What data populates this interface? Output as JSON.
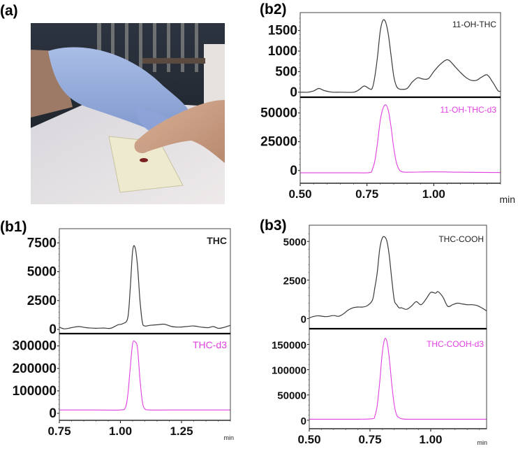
{
  "figure": {
    "panels": [
      "(a)",
      "(b1)",
      "(b2)",
      "(b3)"
    ]
  },
  "photo": {
    "label": "(a)",
    "description": "Gloved hand pressing a fingertip onto a white sampling card with blood spots"
  },
  "colors": {
    "analyte_trace": "#3a3a3a",
    "internal_standard_trace": "#e040e0",
    "axis": "#000000"
  },
  "chart_data": [
    {
      "id": "b1",
      "label": "(b1)",
      "type": "line",
      "xlabel": "min",
      "xlim": [
        0.75,
        1.45
      ],
      "xticks": [
        0.75,
        1.0,
        1.25
      ],
      "xtick_labels": [
        "0.75",
        "1.00",
        "1.25"
      ],
      "series": [
        {
          "name": "THC",
          "color": "#3a3a3a",
          "ylim": [
            0,
            8000
          ],
          "yticks": [
            0,
            2500,
            5000,
            7500
          ],
          "x": [
            0.75,
            0.77,
            0.8,
            0.83,
            0.86,
            0.9,
            0.93,
            0.96,
            0.99,
            1.01,
            1.03,
            1.04,
            1.05,
            1.06,
            1.07,
            1.08,
            1.09,
            1.1,
            1.12,
            1.15,
            1.18,
            1.21,
            1.24,
            1.27,
            1.3,
            1.33,
            1.36,
            1.38,
            1.4,
            1.42,
            1.45
          ],
          "y": [
            200,
            50,
            150,
            250,
            150,
            100,
            120,
            100,
            400,
            500,
            1000,
            3500,
            6800,
            7100,
            5500,
            2500,
            600,
            300,
            350,
            400,
            450,
            250,
            200,
            250,
            300,
            200,
            150,
            250,
            100,
            150,
            350
          ]
        },
        {
          "name": "THC-d3",
          "color": "#e040e0",
          "ylim": [
            0,
            330000
          ],
          "yticks": [
            0,
            100000,
            200000,
            300000
          ],
          "x": [
            0.75,
            0.9,
            1.0,
            1.02,
            1.03,
            1.04,
            1.05,
            1.06,
            1.07,
            1.08,
            1.09,
            1.1,
            1.12,
            1.2,
            1.45
          ],
          "y": [
            15000,
            15000,
            15000,
            25000,
            80000,
            200000,
            310000,
            318000,
            290000,
            150000,
            50000,
            20000,
            15000,
            15000,
            15000
          ]
        }
      ]
    },
    {
      "id": "b2",
      "label": "(b2)",
      "type": "line",
      "xlabel": "min",
      "xlim": [
        0.5,
        1.25
      ],
      "xticks": [
        0.5,
        0.75,
        1.0
      ],
      "xtick_labels": [
        "0.50",
        "0.75",
        "1.00"
      ],
      "series": [
        {
          "name": "11-OH-THC",
          "color": "#3a3a3a",
          "ylim": [
            -20,
            1800
          ],
          "yticks": [
            0,
            500,
            1000,
            1500
          ],
          "x": [
            0.5,
            0.53,
            0.55,
            0.57,
            0.59,
            0.62,
            0.65,
            0.7,
            0.72,
            0.74,
            0.76,
            0.77,
            0.78,
            0.79,
            0.8,
            0.81,
            0.82,
            0.83,
            0.84,
            0.85,
            0.86,
            0.87,
            0.88,
            0.9,
            0.92,
            0.94,
            0.96,
            0.98,
            1.0,
            1.02,
            1.04,
            1.05,
            1.06,
            1.08,
            1.1,
            1.12,
            1.14,
            1.16,
            1.18,
            1.2,
            1.22,
            1.24,
            1.25
          ],
          "y": [
            0,
            0,
            30,
            90,
            40,
            0,
            0,
            0,
            60,
            150,
            80,
            100,
            400,
            900,
            1500,
            1750,
            1700,
            1400,
            900,
            400,
            150,
            80,
            70,
            90,
            250,
            350,
            320,
            330,
            500,
            650,
            760,
            790,
            760,
            620,
            480,
            360,
            290,
            290,
            370,
            420,
            250,
            40,
            20
          ]
        },
        {
          "name": "11-OH-THC-d3",
          "color": "#e040e0",
          "ylim": [
            -5000,
            60000
          ],
          "yticks": [
            0,
            25000,
            50000
          ],
          "x": [
            0.5,
            0.7,
            0.76,
            0.77,
            0.78,
            0.79,
            0.8,
            0.81,
            0.82,
            0.83,
            0.84,
            0.85,
            0.86,
            0.87,
            0.88,
            0.9,
            1.0,
            1.1,
            1.25
          ],
          "y": [
            -2000,
            -2000,
            -1800,
            1000,
            9000,
            25000,
            44000,
            54000,
            57000,
            52000,
            38000,
            20000,
            7000,
            1000,
            -1000,
            -1500,
            -1200,
            -1500,
            -1800
          ]
        }
      ]
    },
    {
      "id": "b3",
      "label": "(b3)",
      "type": "line",
      "xlabel": "min",
      "xlim": [
        0.5,
        1.23
      ],
      "xticks": [
        0.5,
        0.75,
        1.0
      ],
      "xtick_labels": [
        "0.50",
        "0.75",
        "1.00"
      ],
      "series": [
        {
          "name": "THC-COOH",
          "color": "#3a3a3a",
          "ylim": [
            -200,
            5600
          ],
          "yticks": [
            0,
            2500,
            5000
          ],
          "x": [
            0.5,
            0.52,
            0.54,
            0.57,
            0.6,
            0.62,
            0.64,
            0.66,
            0.68,
            0.7,
            0.72,
            0.74,
            0.76,
            0.77,
            0.78,
            0.79,
            0.8,
            0.81,
            0.82,
            0.83,
            0.84,
            0.85,
            0.86,
            0.87,
            0.88,
            0.9,
            0.92,
            0.94,
            0.96,
            0.98,
            1.0,
            1.02,
            1.03,
            1.05,
            1.07,
            1.09,
            1.11,
            1.13,
            1.15,
            1.17,
            1.19,
            1.21,
            1.23
          ],
          "y": [
            50,
            150,
            180,
            130,
            200,
            150,
            300,
            550,
            700,
            750,
            750,
            850,
            1200,
            2000,
            3000,
            4500,
            5200,
            5300,
            5000,
            4000,
            2500,
            1200,
            900,
            700,
            700,
            600,
            800,
            1100,
            900,
            1250,
            1700,
            1650,
            1750,
            1400,
            800,
            900,
            1000,
            950,
            900,
            900,
            850,
            700,
            500
          ]
        },
        {
          "name": "THC-COOH-d3",
          "color": "#e040e0",
          "ylim": [
            -3000,
            170000
          ],
          "yticks": [
            0,
            50000,
            100000,
            150000
          ],
          "x": [
            0.5,
            0.7,
            0.76,
            0.77,
            0.78,
            0.79,
            0.8,
            0.81,
            0.82,
            0.83,
            0.84,
            0.85,
            0.86,
            0.87,
            0.88,
            0.9,
            1.0,
            1.23
          ],
          "y": [
            2000,
            2000,
            3000,
            8000,
            30000,
            75000,
            130000,
            160000,
            155000,
            120000,
            70000,
            30000,
            10000,
            5000,
            3000,
            2000,
            2000,
            2000
          ]
        }
      ]
    }
  ]
}
